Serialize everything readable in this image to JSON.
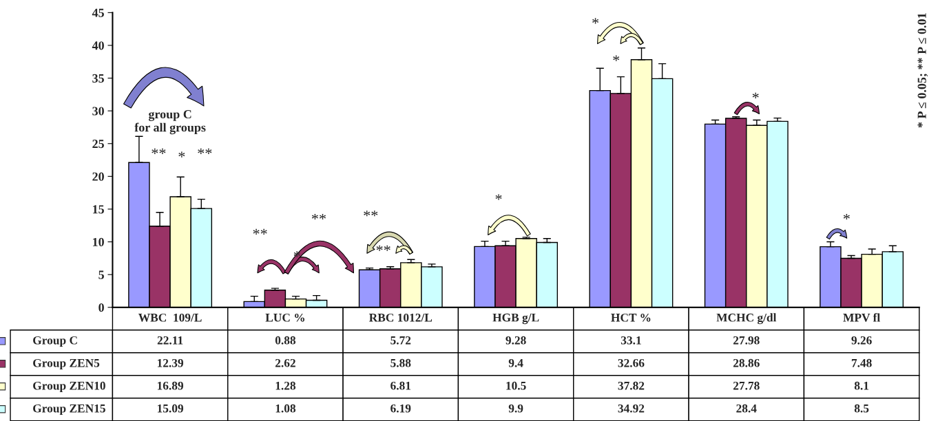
{
  "chart_data": {
    "type": "bar",
    "categories": [
      "WBC  109/L",
      "LUC %",
      "RBC 1012/L",
      "HGB g/L",
      "HCT %",
      "MCHC g/dl",
      "MPV fl"
    ],
    "series": [
      {
        "name": "Group C",
        "color": "#9999ff",
        "values": [
          22.11,
          0.88,
          5.72,
          9.28,
          33.1,
          27.98,
          9.26
        ],
        "errors": [
          [
            22.11,
            26.1
          ],
          [
            0.88,
            1.7
          ],
          [
            5.72,
            6.0
          ],
          [
            9.28,
            10.1
          ],
          [
            33.1,
            36.5
          ],
          [
            27.98,
            28.6
          ],
          [
            9.26,
            10.0
          ]
        ]
      },
      {
        "name": "Group ZEN5",
        "color": "#993366",
        "values": [
          12.39,
          2.62,
          5.88,
          9.4,
          32.66,
          28.86,
          7.48
        ],
        "errors": [
          [
            12.39,
            14.5
          ],
          [
            2.62,
            2.9
          ],
          [
            5.88,
            6.2
          ],
          [
            9.4,
            10.1
          ],
          [
            32.66,
            35.2
          ],
          [
            28.86,
            29.1
          ],
          [
            7.48,
            7.9
          ]
        ]
      },
      {
        "name": "Group ZEN10",
        "color": "#ffffcc",
        "values": [
          16.89,
          1.28,
          6.81,
          10.5,
          37.82,
          27.78,
          8.1
        ],
        "errors": [
          [
            16.89,
            19.9
          ],
          [
            1.28,
            1.7
          ],
          [
            6.81,
            7.3
          ],
          [
            10.5,
            10.7
          ],
          [
            37.82,
            39.6
          ],
          [
            27.78,
            28.6
          ],
          [
            8.1,
            8.9
          ]
        ]
      },
      {
        "name": "Group ZEN15",
        "color": "#ccffff",
        "values": [
          15.09,
          1.08,
          6.19,
          9.9,
          34.92,
          28.4,
          8.5
        ],
        "errors": [
          [
            15.09,
            16.5
          ],
          [
            1.08,
            1.8
          ],
          [
            6.19,
            6.6
          ],
          [
            9.9,
            10.5
          ],
          [
            34.92,
            37.2
          ],
          [
            28.4,
            28.9
          ],
          [
            8.5,
            9.4
          ]
        ]
      }
    ],
    "ylim": [
      0,
      45
    ],
    "yticks": [
      0,
      5,
      10,
      15,
      20,
      25,
      30,
      35,
      40,
      45
    ],
    "data_labels": true,
    "legend": "bottom",
    "grid": false,
    "annotations": [
      "group C\nfor all groups",
      "**",
      "*",
      "**",
      "**",
      "*",
      "**",
      "**",
      "**",
      "*",
      "*",
      "*",
      "*",
      "*",
      "* P ≤ 0.05; ** P ≤ 0.01"
    ]
  }
}
